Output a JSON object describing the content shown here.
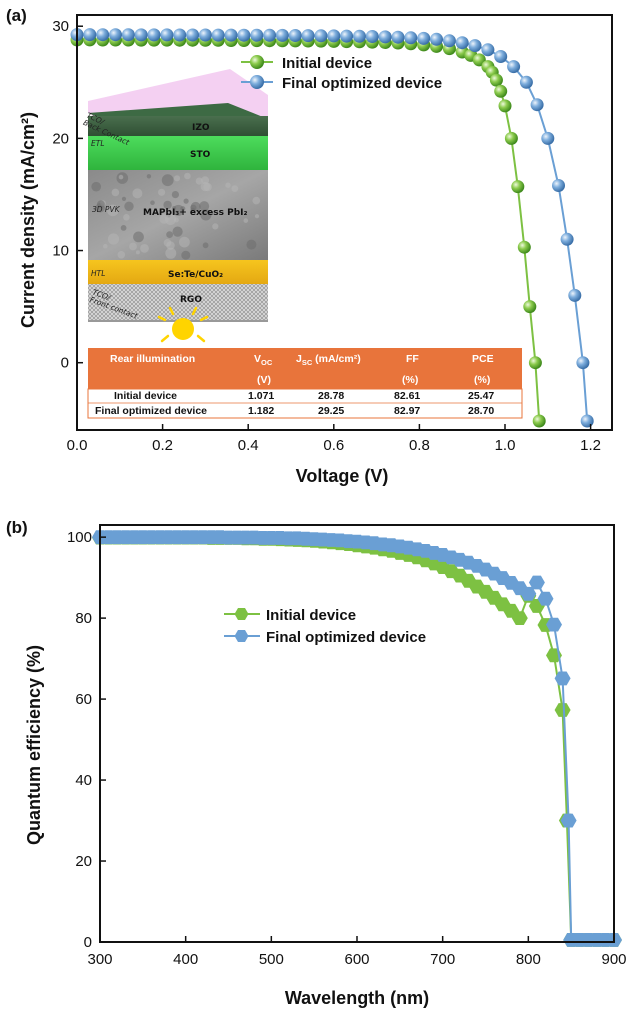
{
  "chart_data": [
    {
      "panel": "(a)",
      "type": "line",
      "xlabel": "Voltage (V)",
      "ylabel": "Current density (mA/cm²)",
      "xlim": [
        0.0,
        1.25
      ],
      "ylim": [
        -6,
        31
      ],
      "xticks": [
        "0.0",
        "0.2",
        "0.4",
        "0.6",
        "0.8",
        "1.0",
        "1.2"
      ],
      "yticks": [
        "0",
        "10",
        "20",
        "30"
      ],
      "series": [
        {
          "name": "Initial device",
          "color": "#7dc142",
          "points": [
            [
              0.0,
              28.78
            ],
            [
              0.03,
              28.78
            ],
            [
              0.06,
              28.77
            ],
            [
              0.09,
              28.77
            ],
            [
              0.12,
              28.77
            ],
            [
              0.15,
              28.76
            ],
            [
              0.18,
              28.76
            ],
            [
              0.21,
              28.76
            ],
            [
              0.24,
              28.75
            ],
            [
              0.27,
              28.75
            ],
            [
              0.3,
              28.74
            ],
            [
              0.33,
              28.74
            ],
            [
              0.36,
              28.73
            ],
            [
              0.39,
              28.73
            ],
            [
              0.42,
              28.72
            ],
            [
              0.45,
              28.71
            ],
            [
              0.48,
              28.7
            ],
            [
              0.51,
              28.69
            ],
            [
              0.54,
              28.68
            ],
            [
              0.57,
              28.67
            ],
            [
              0.6,
              28.65
            ],
            [
              0.63,
              28.63
            ],
            [
              0.66,
              28.61
            ],
            [
              0.69,
              28.58
            ],
            [
              0.72,
              28.55
            ],
            [
              0.75,
              28.5
            ],
            [
              0.78,
              28.43
            ],
            [
              0.81,
              28.33
            ],
            [
              0.84,
              28.2
            ],
            [
              0.87,
              28.0
            ],
            [
              0.9,
              27.7
            ],
            [
              0.92,
              27.4
            ],
            [
              0.94,
              27.0
            ],
            [
              0.96,
              26.4
            ],
            [
              0.97,
              25.9
            ],
            [
              0.98,
              25.2
            ],
            [
              0.99,
              24.2
            ],
            [
              1.0,
              22.9
            ],
            [
              1.015,
              20.0
            ],
            [
              1.03,
              15.7
            ],
            [
              1.045,
              10.3
            ],
            [
              1.058,
              5.0
            ],
            [
              1.071,
              0.0
            ],
            [
              1.08,
              -5.2
            ]
          ]
        },
        {
          "name": "Final optimized device",
          "color": "#6a9fd4",
          "points": [
            [
              0.0,
              29.25
            ],
            [
              0.03,
              29.25
            ],
            [
              0.06,
              29.24
            ],
            [
              0.09,
              29.24
            ],
            [
              0.12,
              29.24
            ],
            [
              0.15,
              29.23
            ],
            [
              0.18,
              29.23
            ],
            [
              0.21,
              29.23
            ],
            [
              0.24,
              29.22
            ],
            [
              0.27,
              29.22
            ],
            [
              0.3,
              29.22
            ],
            [
              0.33,
              29.21
            ],
            [
              0.36,
              29.21
            ],
            [
              0.39,
              29.2
            ],
            [
              0.42,
              29.2
            ],
            [
              0.45,
              29.19
            ],
            [
              0.48,
              29.18
            ],
            [
              0.51,
              29.17
            ],
            [
              0.54,
              29.16
            ],
            [
              0.57,
              29.15
            ],
            [
              0.6,
              29.14
            ],
            [
              0.63,
              29.12
            ],
            [
              0.66,
              29.1
            ],
            [
              0.69,
              29.08
            ],
            [
              0.72,
              29.05
            ],
            [
              0.75,
              29.02
            ],
            [
              0.78,
              28.97
            ],
            [
              0.81,
              28.91
            ],
            [
              0.84,
              28.83
            ],
            [
              0.87,
              28.7
            ],
            [
              0.9,
              28.53
            ],
            [
              0.93,
              28.27
            ],
            [
              0.96,
              27.9
            ],
            [
              0.99,
              27.3
            ],
            [
              1.02,
              26.4
            ],
            [
              1.05,
              25.0
            ],
            [
              1.075,
              23.0
            ],
            [
              1.1,
              20.0
            ],
            [
              1.125,
              15.8
            ],
            [
              1.145,
              11.0
            ],
            [
              1.163,
              6.0
            ],
            [
              1.182,
              0.0
            ],
            [
              1.192,
              -5.2
            ]
          ]
        }
      ]
    },
    {
      "panel": "(b)",
      "type": "line",
      "xlabel": "Wavelength (nm)",
      "ylabel": "Quantum efficiency (%)",
      "xlim": [
        300,
        900
      ],
      "ylim": [
        0,
        103
      ],
      "xticks": [
        "300",
        "400",
        "500",
        "600",
        "700",
        "800",
        "900"
      ],
      "yticks": [
        "0",
        "20",
        "40",
        "60",
        "80",
        "100"
      ],
      "series": [
        {
          "name": "Initial device",
          "color": "#7dc142",
          "points": [
            [
              300,
              99.9
            ],
            [
              310,
              99.9
            ],
            [
              320,
              99.9
            ],
            [
              330,
              99.9
            ],
            [
              340,
              99.9
            ],
            [
              350,
              99.9
            ],
            [
              360,
              99.9
            ],
            [
              370,
              99.9
            ],
            [
              380,
              99.9
            ],
            [
              390,
              99.9
            ],
            [
              400,
              99.9
            ],
            [
              410,
              99.9
            ],
            [
              420,
              99.9
            ],
            [
              430,
              99.8
            ],
            [
              440,
              99.8
            ],
            [
              450,
              99.8
            ],
            [
              460,
              99.8
            ],
            [
              470,
              99.7
            ],
            [
              480,
              99.7
            ],
            [
              490,
              99.6
            ],
            [
              500,
              99.6
            ],
            [
              510,
              99.5
            ],
            [
              520,
              99.4
            ],
            [
              530,
              99.3
            ],
            [
              540,
              99.2
            ],
            [
              550,
              99.1
            ],
            [
              560,
              98.9
            ],
            [
              570,
              98.7
            ],
            [
              580,
              98.5
            ],
            [
              590,
              98.3
            ],
            [
              600,
              98.0
            ],
            [
              610,
              97.7
            ],
            [
              620,
              97.4
            ],
            [
              630,
              97.0
            ],
            [
              640,
              96.6
            ],
            [
              650,
              96.1
            ],
            [
              660,
              95.6
            ],
            [
              670,
              95.0
            ],
            [
              680,
              94.3
            ],
            [
              690,
              93.5
            ],
            [
              700,
              92.6
            ],
            [
              710,
              91.6
            ],
            [
              720,
              90.5
            ],
            [
              730,
              89.2
            ],
            [
              740,
              87.8
            ],
            [
              750,
              86.5
            ],
            [
              760,
              85.0
            ],
            [
              770,
              83.4
            ],
            [
              780,
              81.8
            ],
            [
              790,
              80.0
            ],
            [
              800,
              85.5
            ],
            [
              810,
              83.0
            ],
            [
              820,
              78.3
            ],
            [
              830,
              70.8
            ],
            [
              840,
              57.3
            ],
            [
              845,
              30.0
            ],
            [
              850,
              0.5
            ],
            [
              860,
              0.5
            ],
            [
              870,
              0.5
            ],
            [
              880,
              0.5
            ],
            [
              890,
              0.5
            ],
            [
              900,
              0.5
            ]
          ]
        },
        {
          "name": "Final optimized device",
          "color": "#6a9fd4",
          "points": [
            [
              300,
              100
            ],
            [
              310,
              100
            ],
            [
              320,
              100
            ],
            [
              330,
              100
            ],
            [
              340,
              100
            ],
            [
              350,
              100
            ],
            [
              360,
              100
            ],
            [
              370,
              100
            ],
            [
              380,
              100
            ],
            [
              390,
              100
            ],
            [
              400,
              100
            ],
            [
              410,
              100
            ],
            [
              420,
              100
            ],
            [
              430,
              100
            ],
            [
              440,
              100
            ],
            [
              450,
              99.9
            ],
            [
              460,
              99.9
            ],
            [
              470,
              99.9
            ],
            [
              480,
              99.9
            ],
            [
              490,
              99.8
            ],
            [
              500,
              99.8
            ],
            [
              510,
              99.8
            ],
            [
              520,
              99.7
            ],
            [
              530,
              99.7
            ],
            [
              540,
              99.6
            ],
            [
              550,
              99.5
            ],
            [
              560,
              99.4
            ],
            [
              570,
              99.3
            ],
            [
              580,
              99.2
            ],
            [
              590,
              99.0
            ],
            [
              600,
              98.9
            ],
            [
              610,
              98.7
            ],
            [
              620,
              98.5
            ],
            [
              630,
              98.2
            ],
            [
              640,
              98.0
            ],
            [
              650,
              97.7
            ],
            [
              660,
              97.4
            ],
            [
              670,
              97.0
            ],
            [
              680,
              96.6
            ],
            [
              690,
              96.1
            ],
            [
              700,
              95.6
            ],
            [
              710,
              95.0
            ],
            [
              720,
              94.4
            ],
            [
              730,
              93.7
            ],
            [
              740,
              92.9
            ],
            [
              750,
              92.0
            ],
            [
              760,
              91.0
            ],
            [
              770,
              89.9
            ],
            [
              780,
              88.7
            ],
            [
              790,
              87.4
            ],
            [
              800,
              86.0
            ],
            [
              810,
              88.8
            ],
            [
              820,
              84.8
            ],
            [
              830,
              78.4
            ],
            [
              840,
              65.1
            ],
            [
              847,
              30.0
            ],
            [
              850,
              0.5
            ],
            [
              860,
              0.5
            ],
            [
              870,
              0.5
            ],
            [
              880,
              0.5
            ],
            [
              890,
              0.5
            ],
            [
              900,
              0.5
            ]
          ]
        }
      ]
    }
  ],
  "inset": {
    "device_layers": [
      {
        "name": "IZO",
        "side_label": "TCO/\nBack Contact"
      },
      {
        "name": "STO",
        "side_label": "ETL"
      },
      {
        "name": "MAPbI₃+ excess PbI₂",
        "side_label": "3D PVK"
      },
      {
        "name": "Se:Te/CuO₂",
        "side_label": "HTL"
      },
      {
        "name": "RGO",
        "side_label": "TCO/\nFront contact"
      }
    ],
    "table": {
      "header": [
        "Rear illumination",
        "V_OC",
        "J_SC (mA/cm²)",
        "FF",
        "PCE"
      ],
      "units": [
        "",
        "(V)",
        "",
        "(%)",
        "(%)"
      ],
      "rows": [
        [
          "Initial device",
          "1.071",
          "28.78",
          "82.61",
          "25.47"
        ],
        [
          "Final optimized device",
          "1.182",
          "29.25",
          "82.97",
          "28.70"
        ]
      ],
      "header_color": "#e8743b"
    }
  }
}
